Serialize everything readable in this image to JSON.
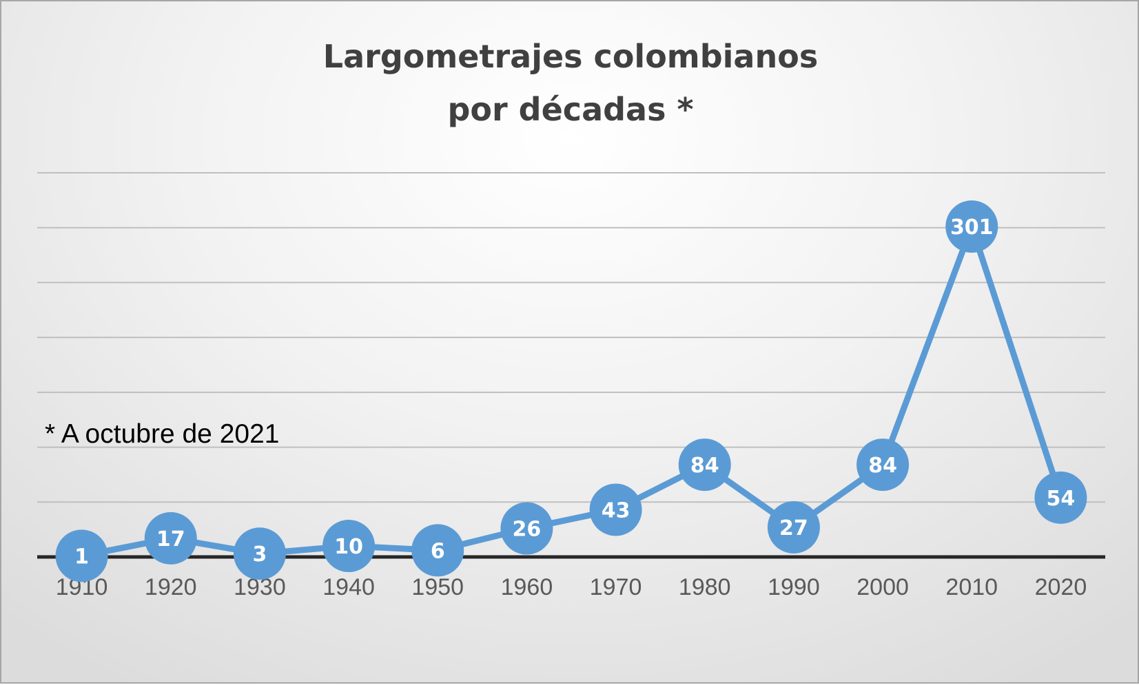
{
  "chart_data": {
    "type": "line",
    "title_lines": [
      "Largometrajes colombianos",
      "por décadas *"
    ],
    "categories": [
      "1910",
      "1920",
      "1930",
      "1940",
      "1950",
      "1960",
      "1970",
      "1980",
      "1990",
      "2000",
      "2010",
      "2020"
    ],
    "values": [
      1,
      17,
      3,
      10,
      6,
      26,
      43,
      84,
      27,
      84,
      301,
      54
    ],
    "annotation": "* A octubre de 2021",
    "xlabel": "",
    "ylabel": "",
    "ylim": [
      0,
      350
    ],
    "y_gridline_step": 50,
    "y_tick_labels_shown": false,
    "grid": true,
    "legend": "none",
    "colors": {
      "series": "#5b9bd5",
      "marker_label": "#ffffff",
      "title": "#404040",
      "tick_label": "#595959",
      "gridline": "#bfbfbf",
      "baseline": "#262626"
    }
  }
}
